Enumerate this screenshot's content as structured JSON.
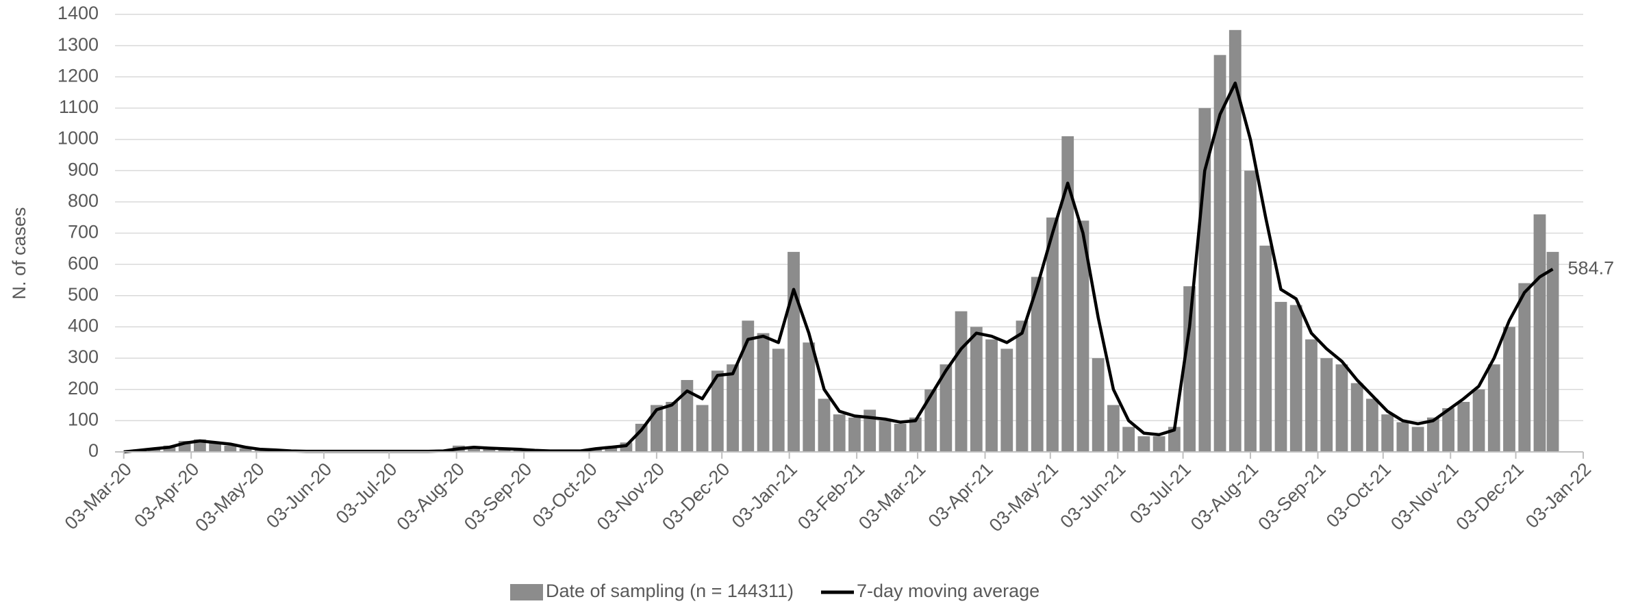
{
  "chart_data": {
    "type": "bar-line",
    "y_label": "N. of cases",
    "x": [
      "2020-03-03",
      "2020-03-10",
      "2020-03-17",
      "2020-03-24",
      "2020-03-31",
      "2020-04-07",
      "2020-04-14",
      "2020-04-21",
      "2020-04-28",
      "2020-05-05",
      "2020-05-12",
      "2020-05-19",
      "2020-05-26",
      "2020-06-02",
      "2020-06-09",
      "2020-06-16",
      "2020-06-23",
      "2020-06-30",
      "2020-07-07",
      "2020-07-14",
      "2020-07-21",
      "2020-07-28",
      "2020-08-04",
      "2020-08-11",
      "2020-08-18",
      "2020-08-25",
      "2020-09-01",
      "2020-09-08",
      "2020-09-15",
      "2020-09-22",
      "2020-09-29",
      "2020-10-06",
      "2020-10-13",
      "2020-10-20",
      "2020-10-27",
      "2020-11-03",
      "2020-11-10",
      "2020-11-17",
      "2020-11-24",
      "2020-12-01",
      "2020-12-08",
      "2020-12-15",
      "2020-12-22",
      "2020-12-29",
      "2021-01-05",
      "2021-01-12",
      "2021-01-19",
      "2021-01-26",
      "2021-02-02",
      "2021-02-09",
      "2021-02-16",
      "2021-02-23",
      "2021-03-02",
      "2021-03-09",
      "2021-03-16",
      "2021-03-23",
      "2021-03-30",
      "2021-04-06",
      "2021-04-13",
      "2021-04-20",
      "2021-04-27",
      "2021-05-04",
      "2021-05-11",
      "2021-05-18",
      "2021-05-25",
      "2021-06-01",
      "2021-06-08",
      "2021-06-15",
      "2021-06-22",
      "2021-06-29",
      "2021-07-06",
      "2021-07-13",
      "2021-07-20",
      "2021-07-27",
      "2021-08-03",
      "2021-08-10",
      "2021-08-17",
      "2021-08-24",
      "2021-08-31",
      "2021-09-07",
      "2021-09-14",
      "2021-09-21",
      "2021-09-28",
      "2021-10-05",
      "2021-10-12",
      "2021-10-19",
      "2021-10-26",
      "2021-11-02",
      "2021-11-09",
      "2021-11-16",
      "2021-11-23",
      "2021-11-30",
      "2021-12-07",
      "2021-12-14",
      "2021-12-20"
    ],
    "series": [
      {
        "name": "Date of sampling (n = 144311)",
        "type": "bar",
        "color": "#8c8c8c",
        "values": [
          0,
          8,
          12,
          20,
          35,
          40,
          28,
          20,
          12,
          8,
          5,
          2,
          2,
          2,
          1,
          2,
          2,
          3,
          2,
          2,
          3,
          5,
          20,
          15,
          10,
          8,
          6,
          4,
          3,
          4,
          5,
          12,
          18,
          30,
          90,
          150,
          160,
          230,
          150,
          260,
          280,
          420,
          380,
          330,
          640,
          350,
          170,
          120,
          110,
          135,
          100,
          90,
          110,
          200,
          280,
          450,
          400,
          360,
          330,
          420,
          560,
          750,
          1010,
          740,
          300,
          150,
          80,
          50,
          50,
          80,
          530,
          1100,
          1270,
          1350,
          900,
          660,
          480,
          470,
          360,
          300,
          280,
          220,
          170,
          120,
          95,
          80,
          110,
          140,
          160,
          200,
          280,
          400,
          540,
          760,
          640
        ]
      },
      {
        "name": "7-day moving average",
        "type": "line",
        "color": "#000000",
        "values": [
          0,
          5,
          10,
          15,
          28,
          35,
          30,
          25,
          15,
          8,
          6,
          3,
          2,
          2,
          2,
          2,
          2,
          2,
          2,
          2,
          2,
          3,
          10,
          15,
          12,
          10,
          8,
          5,
          3,
          3,
          3,
          10,
          15,
          20,
          70,
          135,
          150,
          195,
          170,
          245,
          250,
          360,
          370,
          350,
          520,
          380,
          200,
          130,
          115,
          110,
          105,
          95,
          100,
          180,
          260,
          330,
          380,
          370,
          350,
          380,
          530,
          700,
          860,
          700,
          430,
          200,
          100,
          60,
          55,
          70,
          400,
          900,
          1080,
          1180,
          1000,
          750,
          520,
          490,
          380,
          330,
          290,
          230,
          180,
          130,
          100,
          90,
          100,
          135,
          170,
          210,
          300,
          420,
          510,
          560,
          584.7
        ]
      }
    ],
    "xlim": [
      "2020-02-28",
      "2022-01-03"
    ],
    "xticks": [
      {
        "value": "2020-03-03",
        "label": "03-Mar-20"
      },
      {
        "value": "2020-04-03",
        "label": "03-Apr-20"
      },
      {
        "value": "2020-05-03",
        "label": "03-May-20"
      },
      {
        "value": "2020-06-03",
        "label": "03-Jun-20"
      },
      {
        "value": "2020-07-03",
        "label": "03-Jul-20"
      },
      {
        "value": "2020-08-03",
        "label": "03-Aug-20"
      },
      {
        "value": "2020-09-03",
        "label": "03-Sep-20"
      },
      {
        "value": "2020-10-03",
        "label": "03-Oct-20"
      },
      {
        "value": "2020-11-03",
        "label": "03-Nov-20"
      },
      {
        "value": "2020-12-03",
        "label": "03-Dec-20"
      },
      {
        "value": "2021-01-03",
        "label": "03-Jan-21"
      },
      {
        "value": "2021-02-03",
        "label": "03-Feb-21"
      },
      {
        "value": "2021-03-03",
        "label": "03-Mar-21"
      },
      {
        "value": "2021-04-03",
        "label": "03-Apr-21"
      },
      {
        "value": "2021-05-03",
        "label": "03-May-21"
      },
      {
        "value": "2021-06-03",
        "label": "03-Jun-21"
      },
      {
        "value": "2021-07-03",
        "label": "03-Jul-21"
      },
      {
        "value": "2021-08-03",
        "label": "03-Aug-21"
      },
      {
        "value": "2021-09-03",
        "label": "03-Sep-21"
      },
      {
        "value": "2021-10-03",
        "label": "03-Oct-21"
      },
      {
        "value": "2021-11-03",
        "label": "03-Nov-21"
      },
      {
        "value": "2021-12-03",
        "label": "03-Dec-21"
      },
      {
        "value": "2022-01-03",
        "label": "03-Jan-22"
      }
    ],
    "ylim": [
      0,
      1400
    ],
    "yticks": [
      0,
      100,
      200,
      300,
      400,
      500,
      600,
      700,
      800,
      900,
      1000,
      1100,
      1200,
      1300,
      1400
    ],
    "grid": true,
    "legend": "bottom"
  }
}
